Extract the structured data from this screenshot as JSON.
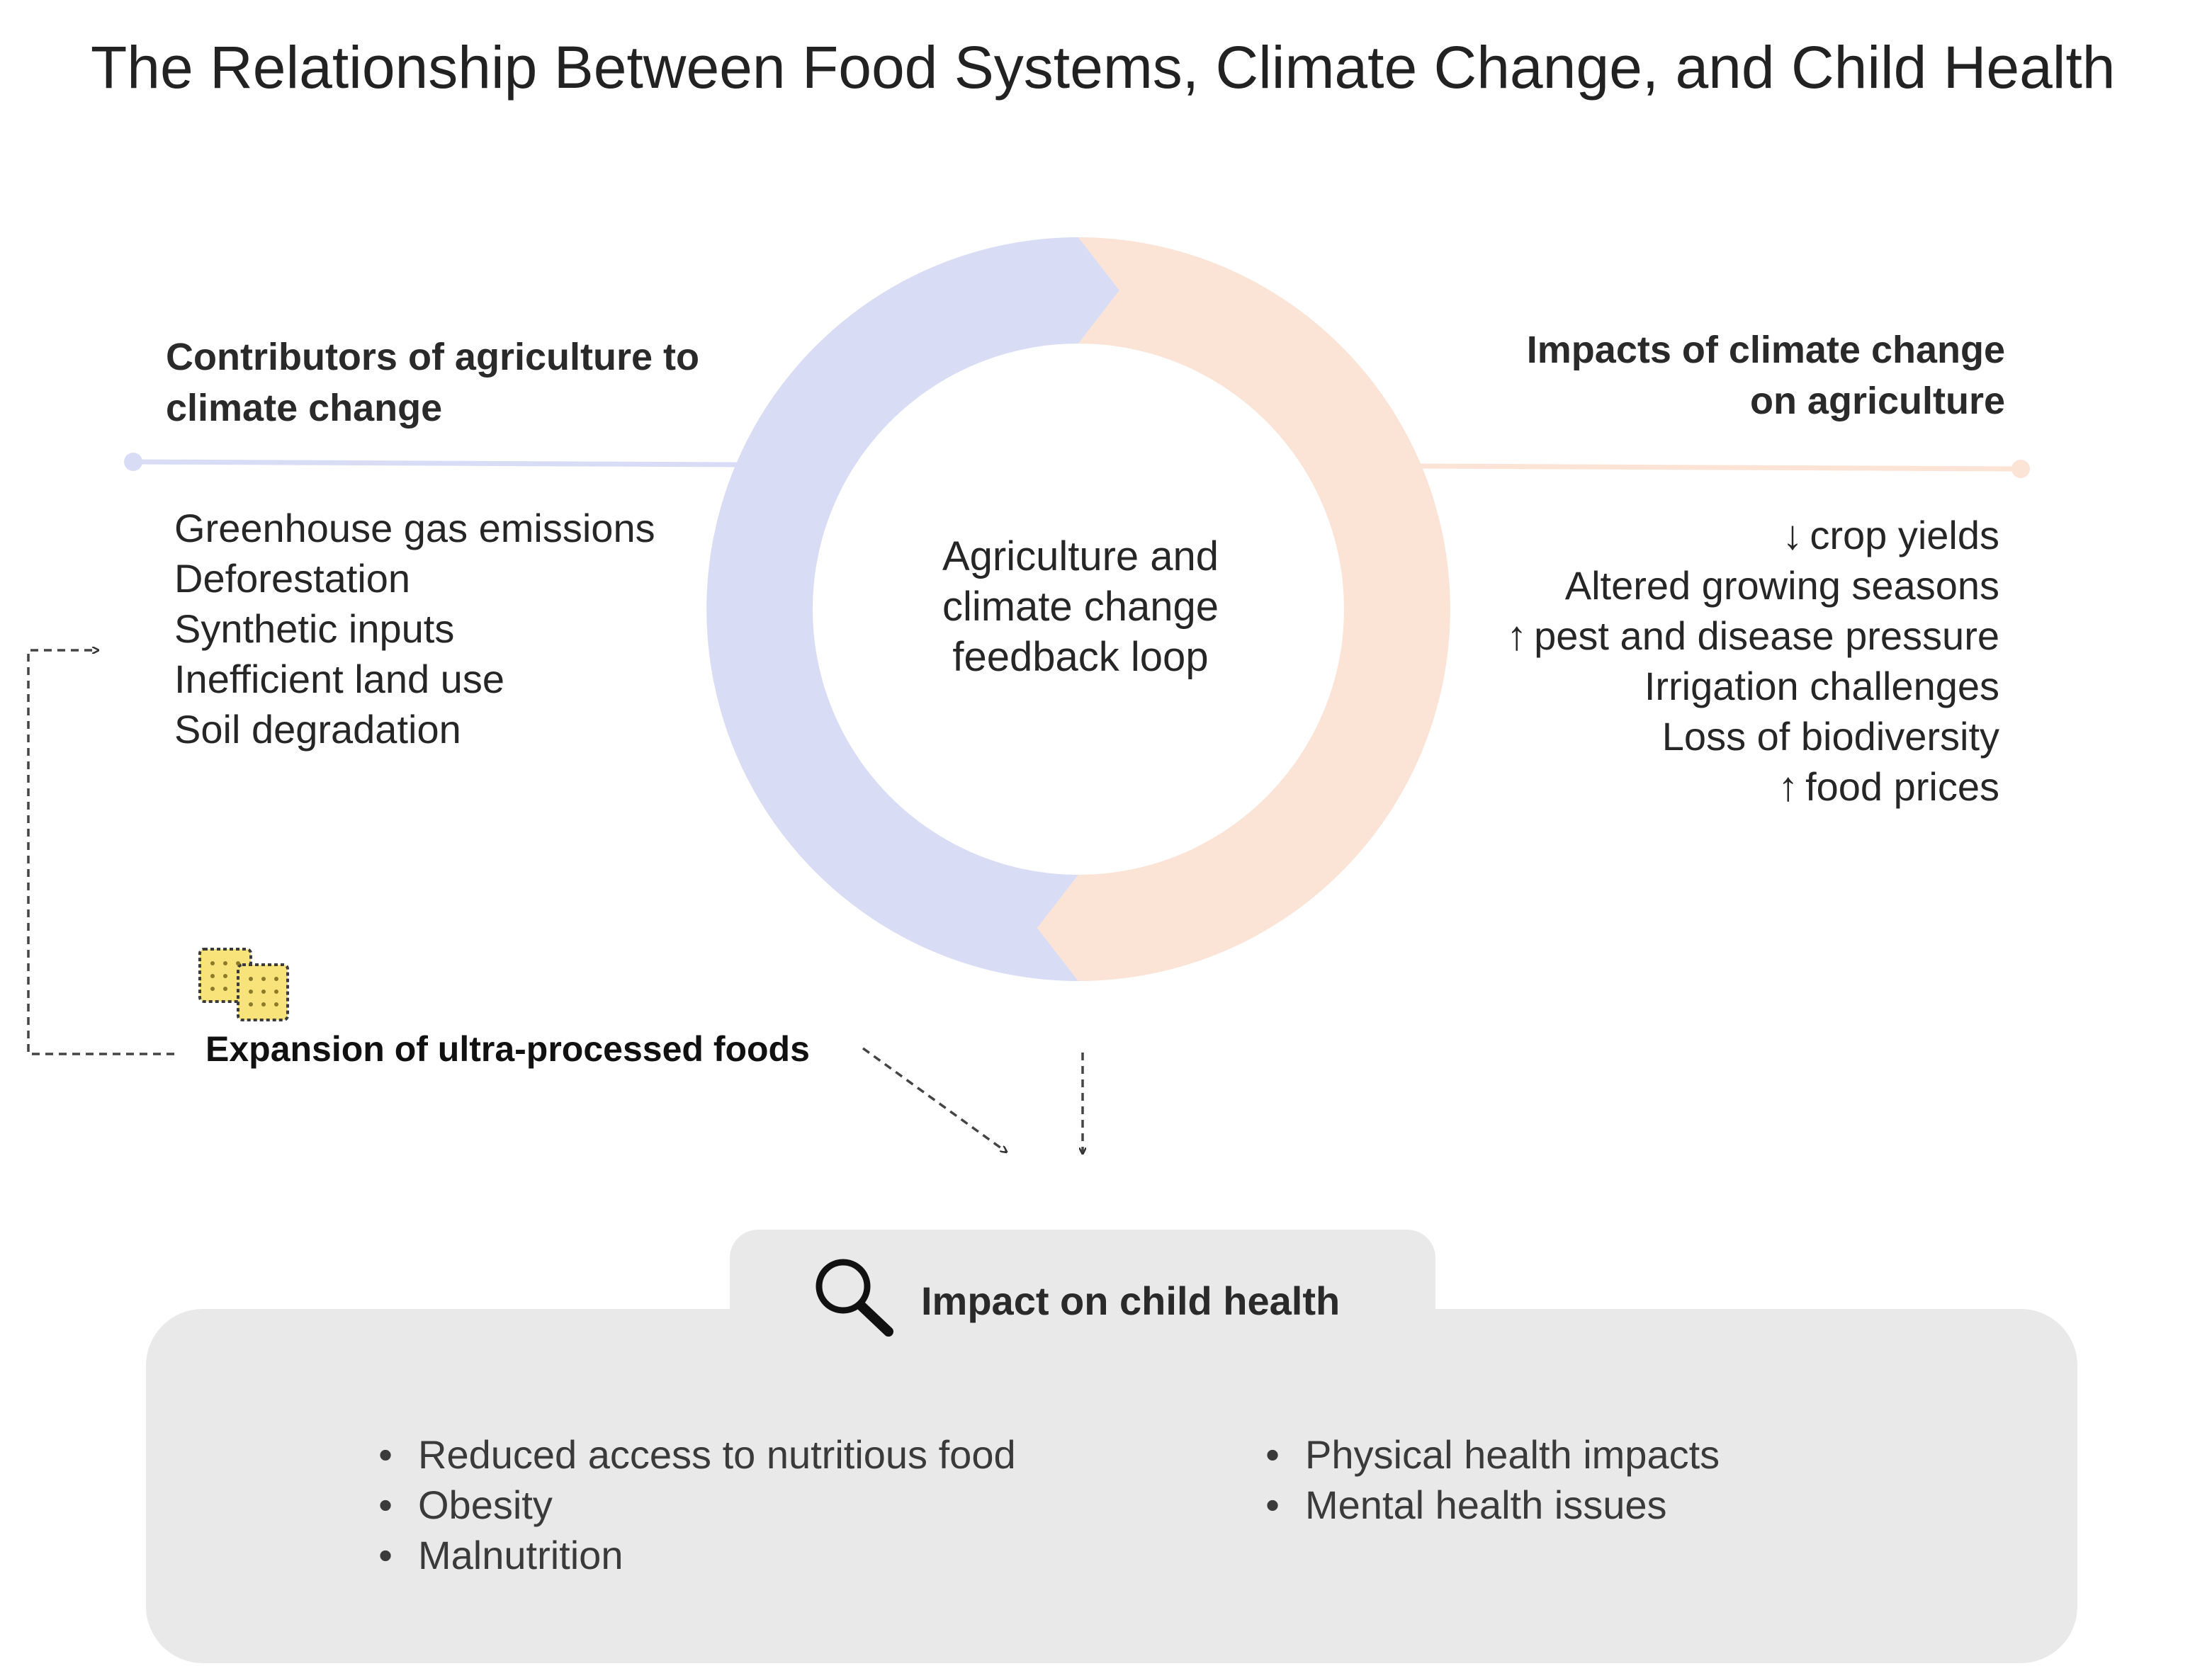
{
  "title": "The Relationship Between Food Systems, Climate Change, and Child Health",
  "colors": {
    "contributors_accent": "#d8ddf5",
    "impacts_accent": "#fbe3d6",
    "health_panel": "#e9e9e9",
    "text": "#222222"
  },
  "contributors": {
    "heading_line1": "Contributors of agriculture to",
    "heading_line2": "climate change",
    "items": [
      "Greenhouse gas emissions",
      "Deforestation",
      "Synthetic inputs",
      "Inefficient land use",
      "Soil degradation"
    ]
  },
  "impacts": {
    "heading_line1": "Impacts of climate change",
    "heading_line2": "on agriculture",
    "items": [
      {
        "arrow": "down",
        "text": "crop yields"
      },
      {
        "arrow": "",
        "text": "Altered growing seasons"
      },
      {
        "arrow": "up",
        "text": "pest and disease pressure"
      },
      {
        "arrow": "",
        "text": "Irrigation challenges"
      },
      {
        "arrow": "",
        "text": "Loss of biodiversity"
      },
      {
        "arrow": "up",
        "text": "food prices"
      }
    ]
  },
  "loop": {
    "line1": "Agriculture and",
    "line2": "climate change",
    "line3": "feedback loop"
  },
  "upf": {
    "label": "Expansion of ultra-processed foods",
    "icon": "crackers-icon"
  },
  "health": {
    "title": "Impact on child health",
    "icon": "magnifier-icon",
    "bullet": "•",
    "col1": [
      "Reduced access to nutritious food",
      "Obesity",
      "Malnutrition"
    ],
    "col2": [
      "Physical health impacts",
      "Mental health issues"
    ]
  }
}
